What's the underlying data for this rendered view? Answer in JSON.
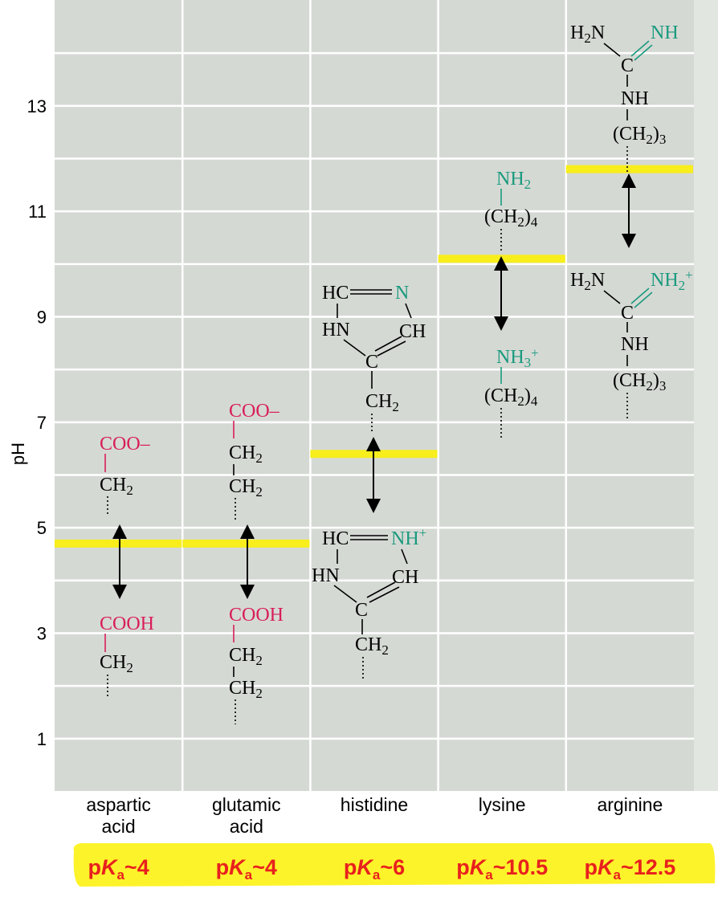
{
  "colors": {
    "panel": "#d5d9d4",
    "grid": "#ffffff",
    "pka_line": "#f7ee1c",
    "acid_group": "#d81e5b",
    "base_group": "#1a9a7e",
    "pka_text": "#e8211d",
    "pka_band": "#fdf32a"
  },
  "axis": {
    "label": "pH",
    "range": [
      0,
      15
    ],
    "ticks": [
      "1",
      "3",
      "5",
      "7",
      "9",
      "11",
      "13"
    ]
  },
  "columns": [
    {
      "name": "aspartic acid",
      "lines": [
        "aspartic",
        "acid"
      ],
      "pka_label": "4",
      "pka_line_value": 4.7
    },
    {
      "name": "glutamic acid",
      "lines": [
        "glutamic",
        "acid"
      ],
      "pka_label": "4",
      "pka_line_value": 4.7
    },
    {
      "name": "histidine",
      "lines": [
        "histidine"
      ],
      "pka_label": "6",
      "pka_line_value": 6.4
    },
    {
      "name": "lysine",
      "lines": [
        "lysine"
      ],
      "pka_label": "10.5",
      "pka_line_value": 10.1
    },
    {
      "name": "arginine",
      "lines": [
        "arginine"
      ],
      "pka_label": "12.5",
      "pka_line_value": 11.8
    }
  ],
  "pka_prefix": "p",
  "pka_symbol": "K",
  "pka_subscript": "a",
  "pka_tilde": "~",
  "structures": {
    "asp_top": [
      "COO–",
      "CH",
      "2"
    ],
    "asp_bot": [
      "COOH",
      "CH",
      "2"
    ],
    "glu_top": [
      "COO–",
      "CH",
      "2",
      "CH",
      "2"
    ],
    "glu_bot": [
      "COOH",
      "CH",
      "2",
      "CH",
      "2"
    ],
    "his_top": [
      "HC",
      "N",
      "HN",
      "CH",
      "C",
      "CH",
      "2"
    ],
    "his_bot": [
      "HC",
      "NH",
      "+",
      "HN",
      "CH",
      "C",
      "CH",
      "2"
    ],
    "lys_top": [
      "NH",
      "2",
      "(CH",
      "2",
      ")",
      "4"
    ],
    "lys_bot": [
      "NH",
      "3",
      "+",
      "(CH",
      "2",
      ")",
      "4"
    ],
    "arg_top": [
      "H",
      "2",
      "N",
      "NH",
      "C",
      "NH",
      "(CH",
      "2",
      ")",
      "3"
    ],
    "arg_bot": [
      "H",
      "2",
      "N",
      "NH",
      "2",
      "+",
      "C",
      "NH",
      "(CH",
      "2",
      ")",
      "3"
    ]
  }
}
